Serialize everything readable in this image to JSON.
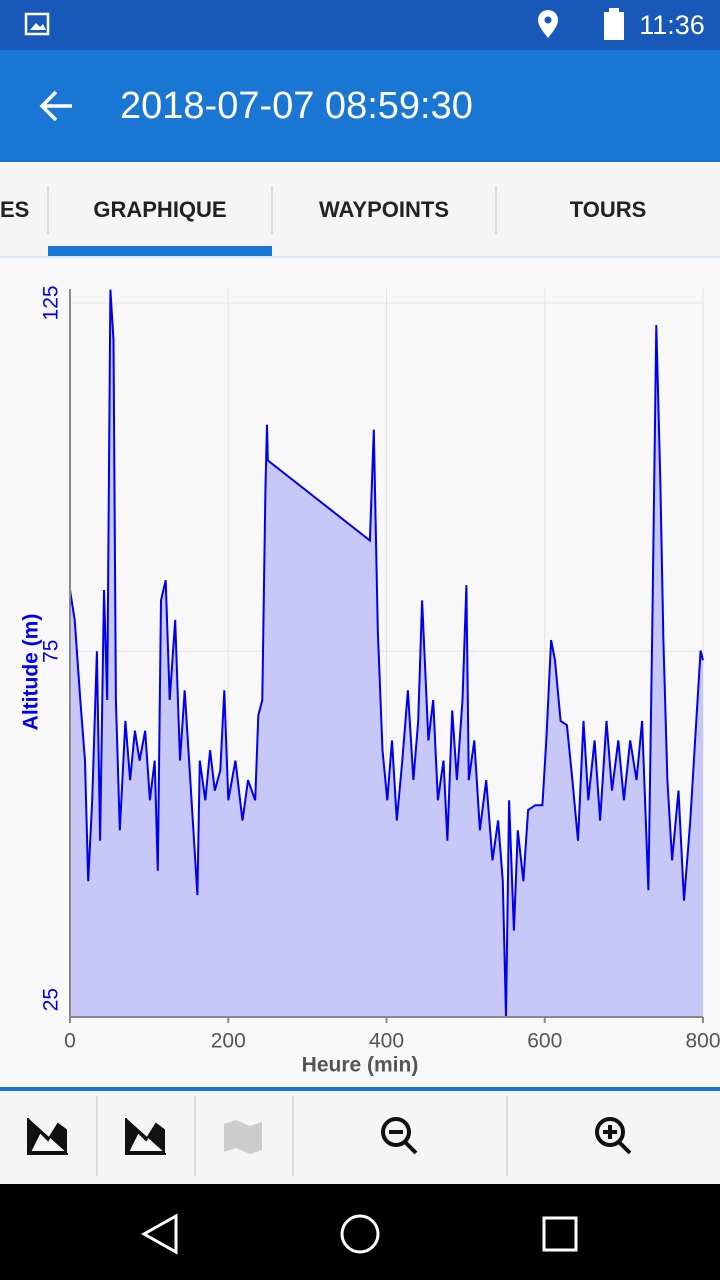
{
  "status_bar": {
    "time": "11:36"
  },
  "app_bar": {
    "title": "2018-07-07 08:59:30"
  },
  "tabs": [
    "ES",
    "GRAPHIQUE",
    "WAYPOINTS",
    "TOURS"
  ],
  "chart_data": {
    "type": "area",
    "xlabel": "Heure (min)",
    "ylabel": "Altitude (m)",
    "color": "#0000ee",
    "fill": "#c8c8f8",
    "grid": true,
    "xlim": [
      0,
      800
    ],
    "ylim": [
      22.5,
      127
    ],
    "xticks": [
      0,
      200,
      400,
      600,
      800
    ],
    "yticks": [
      25,
      75,
      125
    ],
    "x": [
      0,
      6,
      13,
      19,
      23,
      28,
      34,
      38,
      43,
      47,
      51,
      55,
      58,
      63,
      70,
      76,
      82,
      88,
      95,
      101,
      107,
      111,
      115,
      121,
      126,
      133,
      139,
      145,
      152,
      161,
      164,
      171,
      177,
      183,
      190,
      195,
      200,
      209,
      218,
      225,
      234,
      238,
      243,
      247,
      249,
      250,
      379,
      384,
      389,
      395,
      401,
      407,
      413,
      420,
      427,
      434,
      440,
      445,
      453,
      459,
      465,
      472,
      477,
      483,
      489,
      496,
      501,
      504,
      511,
      518,
      526,
      534,
      541,
      547,
      551,
      555,
      561,
      566,
      573,
      579,
      588,
      597,
      602,
      608,
      613,
      620,
      628,
      635,
      642,
      649,
      655,
      663,
      670,
      678,
      685,
      693,
      700,
      708,
      716,
      723,
      731,
      736,
      741,
      746,
      750,
      755,
      761,
      769,
      776,
      784,
      790,
      797,
      800
    ],
    "values": [
      83.8,
      79.5,
      68,
      59.3,
      42,
      53.6,
      75,
      47.8,
      83.8,
      68,
      126.9,
      119.7,
      68,
      49.3,
      65,
      56.5,
      63.6,
      59.3,
      63.6,
      53.6,
      59.3,
      43.5,
      82.3,
      85.2,
      68,
      79.5,
      59.3,
      69.4,
      56.5,
      40,
      59.3,
      53.6,
      60.8,
      55,
      57.9,
      69.4,
      53.6,
      59.3,
      50.7,
      56.5,
      53.6,
      65.8,
      68,
      98.1,
      107.5,
      102.4,
      90.9,
      106.8,
      78,
      60.8,
      53.6,
      62.2,
      50.7,
      59.3,
      69.4,
      56.5,
      65,
      82.3,
      62.2,
      68,
      53.6,
      59.3,
      47.8,
      66.5,
      56.5,
      68,
      84.5,
      56.5,
      62.2,
      49.3,
      56.5,
      45,
      50.7,
      42,
      22.5,
      53.6,
      34.9,
      49.3,
      42,
      52.2,
      52.9,
      52.9,
      62.2,
      76.6,
      73.7,
      65,
      64.4,
      56.5,
      47.8,
      65,
      53.6,
      62.2,
      50.7,
      65,
      55,
      62.2,
      53.6,
      62.2,
      56.5,
      65,
      40.7,
      79.5,
      121.8,
      99.6,
      76.6,
      56.5,
      45,
      55,
      39.2,
      50.7,
      62.2,
      75.1,
      73.7
    ]
  }
}
